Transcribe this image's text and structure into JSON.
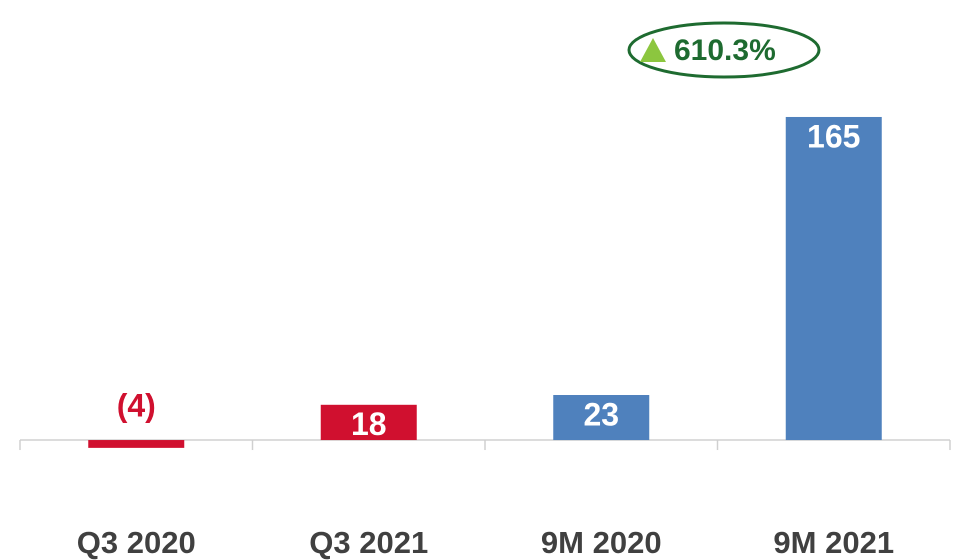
{
  "chart_data": {
    "type": "bar",
    "categories": [
      "Q3 2020",
      "Q3 2021",
      "9M 2020",
      "9M 2021"
    ],
    "values": [
      -4,
      18,
      23,
      165
    ],
    "value_labels": [
      "(4)",
      "18",
      "23",
      "165"
    ],
    "colors": [
      "#d0102f",
      "#d0102f",
      "#4f81bd",
      "#4f81bd"
    ],
    "ylim": [
      -20,
      180
    ],
    "annotation": "610.3%"
  }
}
